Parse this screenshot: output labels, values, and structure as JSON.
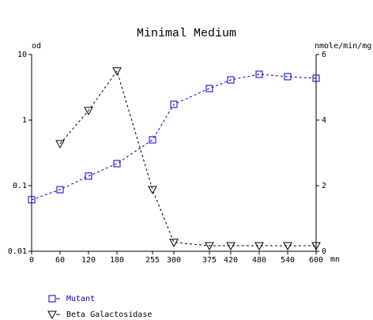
{
  "chart_data": {
    "type": "line",
    "title": "Minimal Medium",
    "y_label": "od",
    "y2_label": "nmole/min/mg",
    "x_label": "mn",
    "x": [
      0,
      60,
      120,
      180,
      255,
      300,
      375,
      420,
      480,
      540,
      600
    ],
    "xlim": [
      0,
      600
    ],
    "xticks": [
      0,
      60,
      120,
      180,
      255,
      300,
      375,
      420,
      480,
      540,
      600
    ],
    "ylim": [
      0.01,
      10
    ],
    "yticks": [
      0.01,
      0.1,
      1,
      10
    ],
    "ylog": true,
    "y2lim": [
      0,
      6
    ],
    "y2ticks": [
      0,
      2,
      4,
      6
    ],
    "legend": "bottom-left",
    "series": [
      {
        "name": "Mutant",
        "color": "#0000cc",
        "marker": "square",
        "values": [
          0.061,
          0.087,
          0.14,
          0.217,
          0.5,
          1.74,
          3.03,
          4.1,
          5.0,
          4.6,
          4.35
        ]
      },
      {
        "name": "Beta Galactosidase",
        "color": "#000000",
        "marker": "triangle",
        "axis": "y2",
        "values": [
          null,
          3.28,
          4.29,
          5.5,
          1.88,
          0.27,
          0.17,
          0.17,
          0.17,
          0.17,
          0.17
        ]
      }
    ]
  }
}
